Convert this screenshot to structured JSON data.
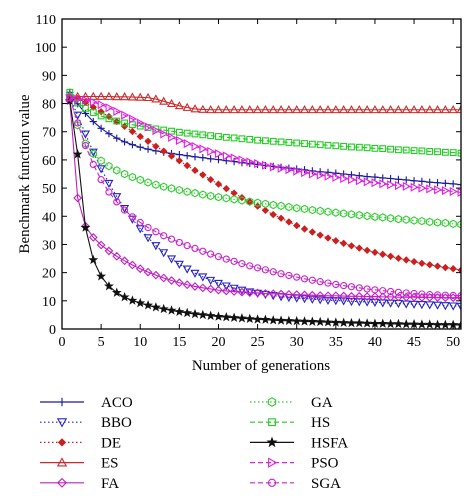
{
  "chart_data": {
    "type": "line",
    "xlabel": "Number of generations",
    "ylabel": "Benchmark function value",
    "xlim": [
      0,
      51
    ],
    "ylim": [
      0,
      110
    ],
    "xticks": [
      0,
      5,
      10,
      15,
      20,
      25,
      30,
      35,
      40,
      45,
      50
    ],
    "yticks": [
      0,
      10,
      20,
      30,
      40,
      50,
      60,
      70,
      80,
      90,
      100,
      110
    ],
    "grid": false,
    "legend_position": "below",
    "x": [
      1,
      2,
      3,
      4,
      5,
      6,
      7,
      8,
      9,
      10,
      11,
      12,
      13,
      14,
      15,
      16,
      17,
      18,
      19,
      20,
      21,
      22,
      23,
      24,
      25,
      26,
      27,
      28,
      29,
      30,
      31,
      32,
      33,
      34,
      35,
      36,
      37,
      38,
      39,
      40,
      41,
      42,
      43,
      44,
      45,
      46,
      47,
      48,
      49,
      50,
      51
    ],
    "series": [
      {
        "name": "ACO",
        "color": "#1a1a9c",
        "marker": "plus",
        "dash": "solid",
        "values": [
          84.0,
          79.9,
          76.5,
          73.6,
          71.2,
          69.3,
          67.7,
          66.4,
          65.4,
          64.5,
          63.8,
          63.2,
          62.7,
          62.3,
          61.9,
          61.5,
          61.1,
          60.8,
          60.4,
          60.1,
          59.7,
          59.4,
          59.0,
          58.7,
          58.4,
          58.0,
          57.7,
          57.4,
          57.1,
          56.8,
          56.5,
          56.1,
          55.8,
          55.6,
          55.3,
          55.0,
          54.7,
          54.4,
          54.1,
          53.9,
          53.6,
          53.4,
          53.1,
          52.9,
          52.6,
          52.4,
          52.1,
          51.9,
          51.7,
          51.5,
          51.2
        ]
      },
      {
        "name": "BBO",
        "color": "#2323c8",
        "marker": "triangle-down",
        "dash": "dotted",
        "values": [
          82.0,
          75.9,
          69.2,
          62.8,
          56.9,
          51.7,
          47.0,
          42.8,
          39.0,
          35.6,
          32.4,
          29.6,
          27.1,
          24.9,
          23.0,
          21.3,
          19.8,
          18.5,
          17.3,
          16.2,
          15.3,
          14.5,
          13.8,
          13.2,
          12.7,
          12.3,
          11.9,
          11.5,
          11.2,
          11.0,
          10.8,
          10.6,
          10.4,
          10.2,
          10.1,
          10.0,
          9.8,
          9.7,
          9.6,
          9.5,
          9.3,
          9.2,
          9.1,
          8.9,
          8.8,
          8.7,
          8.6,
          8.5,
          8.3,
          8.2,
          8.1
        ]
      },
      {
        "name": "DE",
        "color": "#cc1f1f",
        "marker": "diamond-filled",
        "dash": "dotted",
        "values": [
          83.0,
          81.8,
          80.4,
          78.7,
          77.1,
          75.4,
          73.6,
          71.9,
          70.1,
          68.3,
          66.6,
          64.8,
          63.1,
          61.4,
          59.7,
          58.0,
          56.3,
          54.7,
          53.0,
          51.4,
          49.8,
          48.2,
          46.6,
          45.1,
          43.6,
          42.1,
          40.6,
          39.3,
          38.0,
          36.7,
          35.5,
          34.4,
          33.3,
          32.3,
          31.3,
          30.4,
          29.5,
          28.7,
          27.9,
          27.2,
          26.5,
          25.8,
          25.1,
          24.5,
          23.9,
          23.3,
          22.8,
          22.3,
          21.8,
          21.4,
          20.9
        ]
      },
      {
        "name": "ES",
        "color": "#cc2b2b",
        "marker": "triangle-up",
        "dash": "solid",
        "values": [
          82.0,
          82.5,
          82.5,
          82.5,
          82.5,
          82.5,
          82.4,
          82.4,
          82.3,
          82.2,
          82.1,
          81.6,
          80.8,
          80.0,
          79.2,
          78.6,
          78.1,
          77.9,
          77.8,
          77.8,
          77.8,
          77.8,
          77.8,
          77.8,
          77.8,
          77.8,
          77.8,
          77.8,
          77.8,
          77.8,
          77.8,
          77.8,
          77.8,
          77.8,
          77.8,
          77.8,
          77.8,
          77.8,
          77.8,
          77.8,
          77.8,
          77.8,
          77.8,
          77.8,
          77.8,
          77.8,
          77.8,
          77.8,
          77.8,
          77.8,
          77.8
        ]
      },
      {
        "name": "FA",
        "color": "#c21fc2",
        "marker": "diamond",
        "dash": "solid",
        "values": [
          81.0,
          46.5,
          36.5,
          32.5,
          29.8,
          27.7,
          25.8,
          24.2,
          22.7,
          21.4,
          20.2,
          19.1,
          18.1,
          17.2,
          16.4,
          15.7,
          15.1,
          14.6,
          14.2,
          13.8,
          13.5,
          13.3,
          13.1,
          12.9,
          12.8,
          12.6,
          12.5,
          12.4,
          12.3,
          12.2,
          12.1,
          12.0,
          11.9,
          11.8,
          11.8,
          11.7,
          11.6,
          11.6,
          11.5,
          11.5,
          11.4,
          11.4,
          11.3,
          11.3,
          11.3,
          11.2,
          11.2,
          11.2,
          11.1,
          11.1,
          11.1
        ]
      },
      {
        "name": "GA",
        "color": "#33cc33",
        "marker": "hexagon",
        "dash": "dotted",
        "values": [
          82.5,
          72.3,
          65.8,
          62.2,
          59.7,
          57.8,
          56.3,
          55.0,
          53.9,
          52.9,
          52.0,
          51.2,
          50.5,
          49.9,
          49.3,
          48.7,
          48.2,
          47.7,
          47.2,
          46.8,
          46.4,
          46.0,
          45.6,
          45.2,
          44.8,
          44.4,
          44.0,
          43.7,
          43.3,
          42.9,
          42.6,
          42.2,
          41.9,
          41.6,
          41.3,
          41.0,
          40.7,
          40.4,
          40.1,
          39.8,
          39.6,
          39.3,
          39.0,
          38.8,
          38.5,
          38.3,
          38.0,
          37.8,
          37.6,
          37.3,
          37.1
        ]
      },
      {
        "name": "HS",
        "color": "#22cc22",
        "marker": "square",
        "dash": "dashed",
        "values": [
          84.0,
          80.2,
          78.3,
          76.8,
          75.6,
          74.6,
          73.8,
          73.1,
          72.5,
          72.0,
          71.5,
          71.0,
          70.6,
          70.2,
          69.8,
          69.5,
          69.2,
          68.9,
          68.6,
          68.3,
          68.0,
          67.8,
          67.5,
          67.3,
          67.0,
          66.8,
          66.6,
          66.4,
          66.2,
          66.0,
          65.8,
          65.6,
          65.4,
          65.2,
          65.0,
          64.8,
          64.6,
          64.5,
          64.3,
          64.1,
          64.0,
          63.8,
          63.6,
          63.5,
          63.3,
          63.2,
          63.0,
          62.9,
          62.7,
          62.6,
          62.4
        ]
      },
      {
        "name": "HSFA",
        "color": "#111111",
        "marker": "star",
        "dash": "solid",
        "values": [
          81.0,
          62.0,
          36.0,
          24.5,
          18.7,
          15.2,
          12.9,
          11.3,
          10.1,
          9.2,
          8.4,
          7.7,
          7.1,
          6.6,
          6.1,
          5.7,
          5.3,
          5.0,
          4.7,
          4.4,
          4.2,
          4.0,
          3.8,
          3.6,
          3.4,
          3.3,
          3.1,
          3.0,
          2.9,
          2.8,
          2.7,
          2.6,
          2.5,
          2.4,
          2.3,
          2.2,
          2.1,
          2.1,
          2.0,
          1.9,
          1.9,
          1.8,
          1.8,
          1.7,
          1.7,
          1.6,
          1.6,
          1.5,
          1.5,
          1.5,
          1.4
        ]
      },
      {
        "name": "PSO",
        "color": "#e020e0",
        "marker": "triangle-right",
        "dash": "dashed",
        "values": [
          82.0,
          81.5,
          81.2,
          80.5,
          79.6,
          78.5,
          77.2,
          75.9,
          74.5,
          73.1,
          71.7,
          70.4,
          69.2,
          68.0,
          66.9,
          65.8,
          64.8,
          63.9,
          63.0,
          62.2,
          61.4,
          60.7,
          60.0,
          59.3,
          58.7,
          58.1,
          57.5,
          57.0,
          56.5,
          56.0,
          55.5,
          55.0,
          54.6,
          54.2,
          53.8,
          53.4,
          53.0,
          52.6,
          52.2,
          51.9,
          51.5,
          51.2,
          50.9,
          50.6,
          50.3,
          50.0,
          49.7,
          49.4,
          49.1,
          48.8,
          48.5
        ]
      },
      {
        "name": "SGA",
        "color": "#cc22cc",
        "marker": "circle",
        "dash": "dashed",
        "values": [
          82.0,
          73.1,
          65.1,
          58.4,
          53.0,
          48.6,
          45.1,
          42.2,
          39.8,
          37.8,
          36.0,
          34.5,
          33.1,
          31.9,
          30.7,
          29.6,
          28.6,
          27.6,
          26.6,
          25.7,
          24.8,
          24.0,
          23.2,
          22.4,
          21.7,
          21.0,
          20.3,
          19.6,
          19.0,
          18.4,
          17.8,
          17.3,
          16.8,
          16.3,
          15.8,
          15.4,
          15.0,
          14.6,
          14.2,
          13.9,
          13.6,
          13.3,
          13.0,
          12.8,
          12.6,
          12.4,
          12.2,
          12.1,
          12.0,
          11.9,
          11.8
        ]
      }
    ]
  }
}
